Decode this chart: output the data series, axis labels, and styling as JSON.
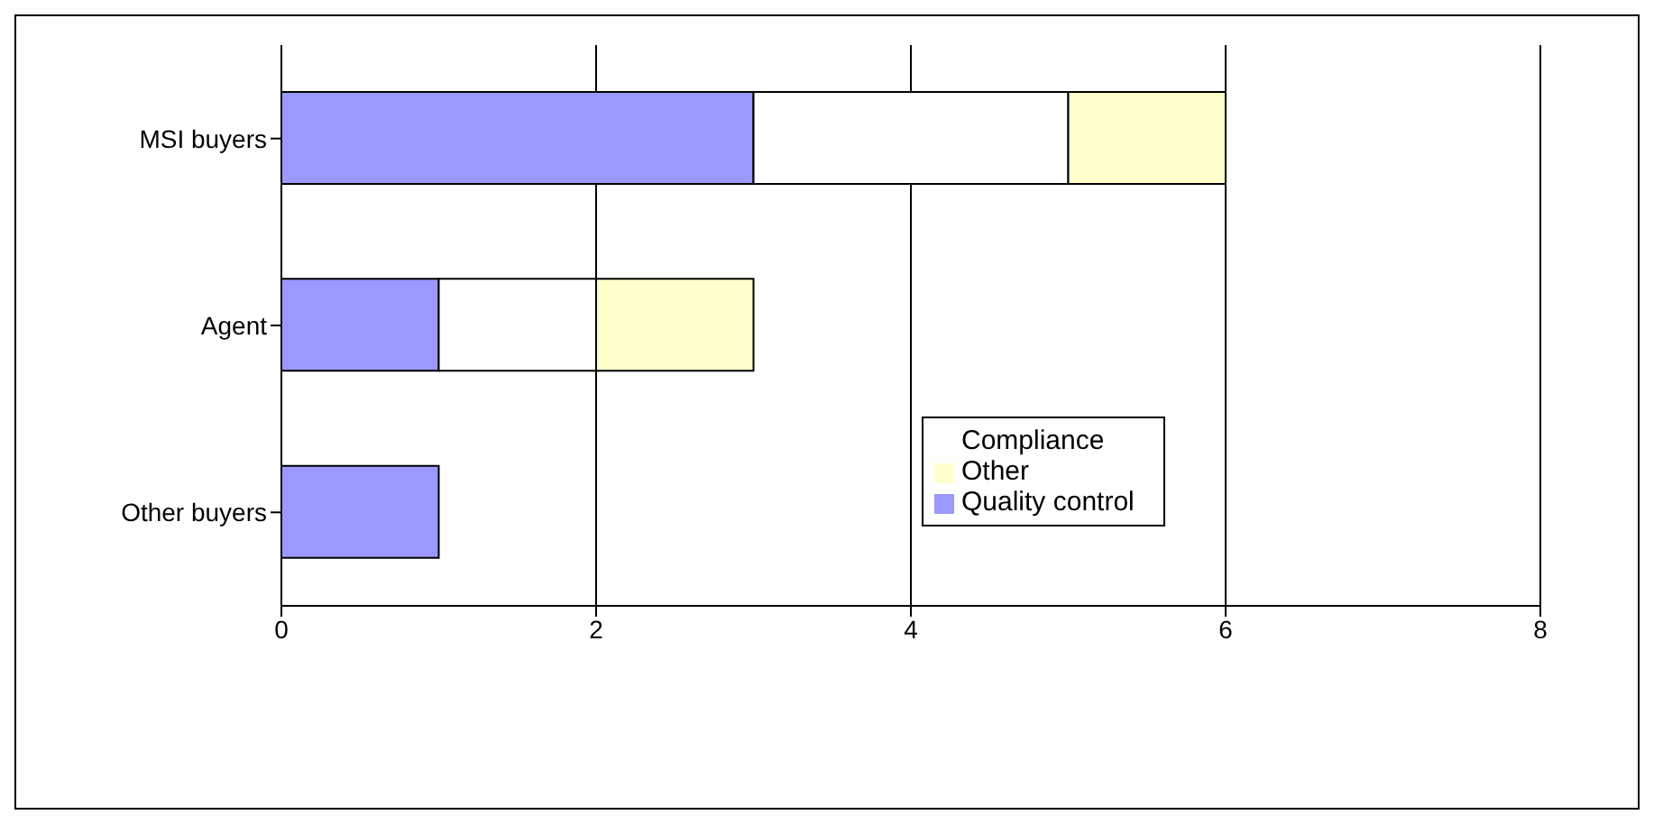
{
  "chart_data": {
    "type": "bar",
    "orientation": "horizontal",
    "stacked": true,
    "categories": [
      "MSI buyers",
      "Agent",
      "Other buyers"
    ],
    "series": [
      {
        "name": "Quality control",
        "color": "#9999ff",
        "values": [
          3,
          1,
          1
        ]
      },
      {
        "name": "Compliance",
        "color": "#ffffff",
        "values": [
          2,
          1,
          null
        ]
      },
      {
        "name": "Other",
        "color": "#ffffcc",
        "values": [
          1,
          1,
          null
        ]
      }
    ],
    "xlim": [
      0,
      8
    ],
    "xticks": [
      0,
      2,
      4,
      6,
      8
    ],
    "grid": "x",
    "legend": "right"
  }
}
